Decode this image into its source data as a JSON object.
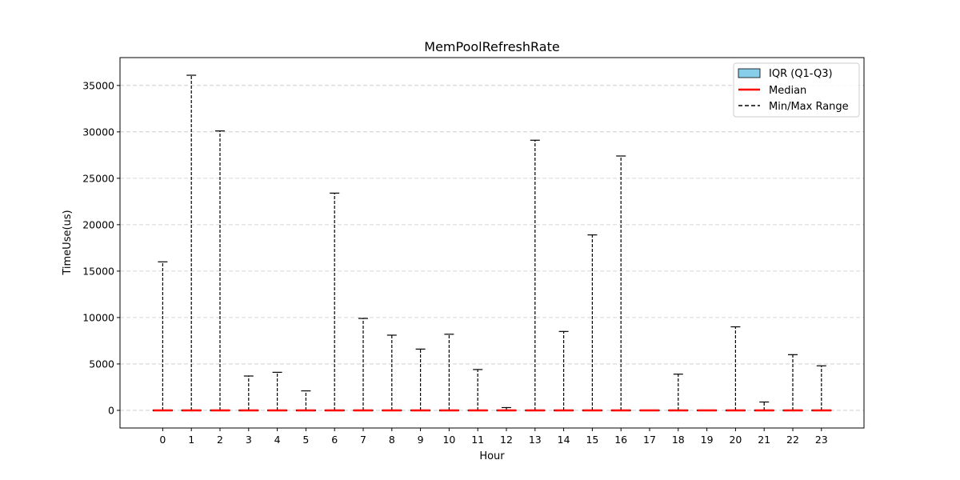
{
  "chart_data": {
    "type": "boxplot",
    "title": "MemPoolRefreshRate",
    "xlabel": "Hour",
    "ylabel": "TimeUse(us)",
    "categories": [
      "0",
      "1",
      "2",
      "3",
      "4",
      "5",
      "6",
      "7",
      "8",
      "9",
      "10",
      "11",
      "12",
      "13",
      "14",
      "15",
      "16",
      "17",
      "18",
      "19",
      "20",
      "21",
      "22",
      "23"
    ],
    "ylim": [
      -1900,
      38000
    ],
    "yticks": [
      0,
      5000,
      10000,
      15000,
      20000,
      25000,
      30000,
      35000
    ],
    "grid": "y-dashed",
    "legend_position": "top-right",
    "legend": {
      "iqr": "IQR (Q1-Q3)",
      "median": "Median",
      "range": "Min/Max Range"
    },
    "colors": {
      "iqr_fill": "#87ceeb",
      "median": "#ff0000",
      "whisker": "#000000",
      "grid": "#c8c8c8"
    },
    "series": [
      {
        "hour": "0",
        "min": 0,
        "q1": 0,
        "median": 0,
        "q3": 0,
        "max": 16000
      },
      {
        "hour": "1",
        "min": 0,
        "q1": 0,
        "median": 0,
        "q3": 0,
        "max": 36100
      },
      {
        "hour": "2",
        "min": 0,
        "q1": 0,
        "median": 0,
        "q3": 0,
        "max": 30100
      },
      {
        "hour": "3",
        "min": 0,
        "q1": 0,
        "median": 0,
        "q3": 0,
        "max": 3700
      },
      {
        "hour": "4",
        "min": 0,
        "q1": 0,
        "median": 0,
        "q3": 0,
        "max": 4100
      },
      {
        "hour": "5",
        "min": 0,
        "q1": 0,
        "median": 0,
        "q3": 0,
        "max": 2100
      },
      {
        "hour": "6",
        "min": 0,
        "q1": 0,
        "median": 0,
        "q3": 0,
        "max": 23400
      },
      {
        "hour": "7",
        "min": 0,
        "q1": 0,
        "median": 0,
        "q3": 0,
        "max": 9900
      },
      {
        "hour": "8",
        "min": 0,
        "q1": 0,
        "median": 0,
        "q3": 0,
        "max": 8100
      },
      {
        "hour": "9",
        "min": 0,
        "q1": 0,
        "median": 0,
        "q3": 0,
        "max": 6600
      },
      {
        "hour": "10",
        "min": 0,
        "q1": 0,
        "median": 0,
        "q3": 0,
        "max": 8200
      },
      {
        "hour": "11",
        "min": 0,
        "q1": 0,
        "median": 0,
        "q3": 0,
        "max": 4400
      },
      {
        "hour": "12",
        "min": 0,
        "q1": 0,
        "median": 0,
        "q3": 0,
        "max": 300
      },
      {
        "hour": "13",
        "min": 0,
        "q1": 0,
        "median": 0,
        "q3": 0,
        "max": 29100
      },
      {
        "hour": "14",
        "min": 0,
        "q1": 0,
        "median": 0,
        "q3": 0,
        "max": 8500
      },
      {
        "hour": "15",
        "min": 0,
        "q1": 0,
        "median": 0,
        "q3": 0,
        "max": 18900
      },
      {
        "hour": "16",
        "min": 0,
        "q1": 0,
        "median": 0,
        "q3": 0,
        "max": 27400
      },
      {
        "hour": "17",
        "min": 0,
        "q1": 0,
        "median": 0,
        "q3": 0,
        "max": 0
      },
      {
        "hour": "18",
        "min": 0,
        "q1": 0,
        "median": 0,
        "q3": 0,
        "max": 3900
      },
      {
        "hour": "19",
        "min": 0,
        "q1": 0,
        "median": 0,
        "q3": 0,
        "max": 0
      },
      {
        "hour": "20",
        "min": 0,
        "q1": 0,
        "median": 0,
        "q3": 0,
        "max": 9000
      },
      {
        "hour": "21",
        "min": 0,
        "q1": 0,
        "median": 0,
        "q3": 0,
        "max": 900
      },
      {
        "hour": "22",
        "min": 0,
        "q1": 0,
        "median": 0,
        "q3": 0,
        "max": 6000
      },
      {
        "hour": "23",
        "min": 0,
        "q1": 0,
        "median": 0,
        "q3": 0,
        "max": 4800
      }
    ]
  }
}
